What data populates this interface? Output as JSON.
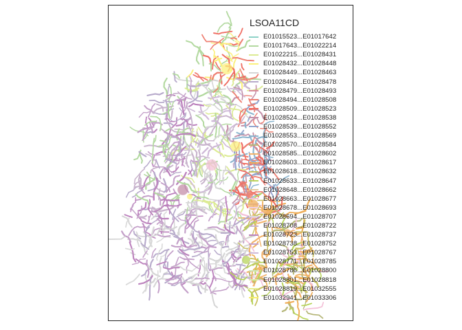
{
  "legend": {
    "title": "LSOA11CD",
    "items": [
      {
        "label": "E01015523...E01017642",
        "color": "#8dd3c7"
      },
      {
        "label": "E01017643...E01022214",
        "color": "#b3d9a0"
      },
      {
        "label": "E01022215...E01028431",
        "color": "#dceb93"
      },
      {
        "label": "E01028432...E01028448",
        "color": "#fbf07d"
      },
      {
        "label": "E01028449...E01028463",
        "color": "#d5d5d5"
      },
      {
        "label": "E01028464...E01028478",
        "color": "#b7aacb"
      },
      {
        "label": "E01028479...E01028493",
        "color": "#d98a9b"
      },
      {
        "label": "E01028494...E01028508",
        "color": "#ee8073"
      },
      {
        "label": "E01028509...E01028523",
        "color": "#ef6d62"
      },
      {
        "label": "E01028524...E01028538",
        "color": "#c48fa8"
      },
      {
        "label": "E01028539...E01028552",
        "color": "#94a6cf"
      },
      {
        "label": "E01028553...E01028569",
        "color": "#8db6cf"
      },
      {
        "label": "E01028570...E01028584",
        "color": "#b6b77a"
      },
      {
        "label": "E01028585...E01028602",
        "color": "#f2b26a"
      },
      {
        "label": "E01028603...E01028617",
        "color": "#efae59"
      },
      {
        "label": "E01028618...E01028632",
        "color": "#c9c162"
      },
      {
        "label": "E01028633...E01028647",
        "color": "#b8d45b"
      },
      {
        "label": "E01028648...E01028662",
        "color": "#e2ca9e"
      },
      {
        "label": "E01028663...E01028677",
        "color": "#f4c1d8"
      },
      {
        "label": "E01028678...E01028693",
        "color": "#f0cfe1"
      },
      {
        "label": "E01028694...E01028707",
        "color": "#dadada"
      },
      {
        "label": "E01028708...E01028722",
        "color": "#c9b4cd"
      },
      {
        "label": "E01028723...E01028737",
        "color": "#bc82bd"
      },
      {
        "label": "E01028738...E01028752",
        "color": "#c4a0c9"
      },
      {
        "label": "E01028753...E01028767",
        "color": "#cfb9d8"
      },
      {
        "label": "E01028771...E01028785",
        "color": "#d5d9c2"
      },
      {
        "label": "E01028786...E01028800",
        "color": "#cfe6b7"
      },
      {
        "label": "E01028801...E01028818",
        "color": "#dbebad"
      },
      {
        "label": "E01028819...E01032555",
        "color": "#e7ed8e"
      },
      {
        "label": "E01032941...E01033306",
        "color": "#f7ee6e"
      }
    ]
  }
}
